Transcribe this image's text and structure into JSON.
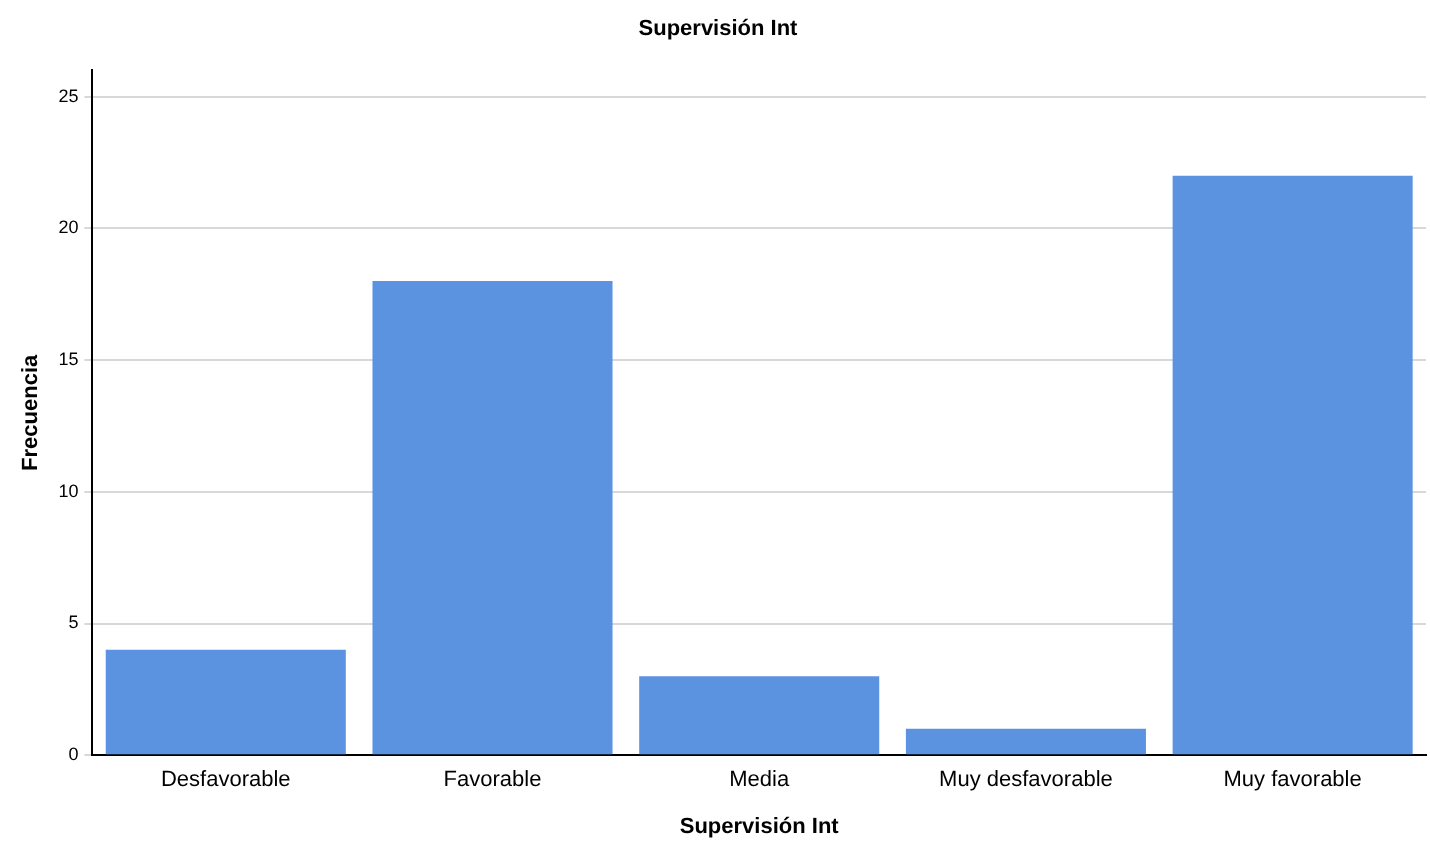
{
  "chart_data": {
    "type": "bar",
    "title": "Supervisión Int",
    "xlabel": "Supervisión Int",
    "ylabel": "Frecuencia",
    "categories": [
      "Desfavorable",
      "Favorable",
      "Media",
      "Muy desfavorable",
      "Muy favorable"
    ],
    "values": [
      4,
      18,
      3,
      1,
      22
    ],
    "color": "#5b93e0",
    "ylim": [
      0,
      26
    ],
    "yticks": [
      0,
      5,
      10,
      15,
      20,
      25
    ],
    "grid": "y",
    "legend": false
  }
}
